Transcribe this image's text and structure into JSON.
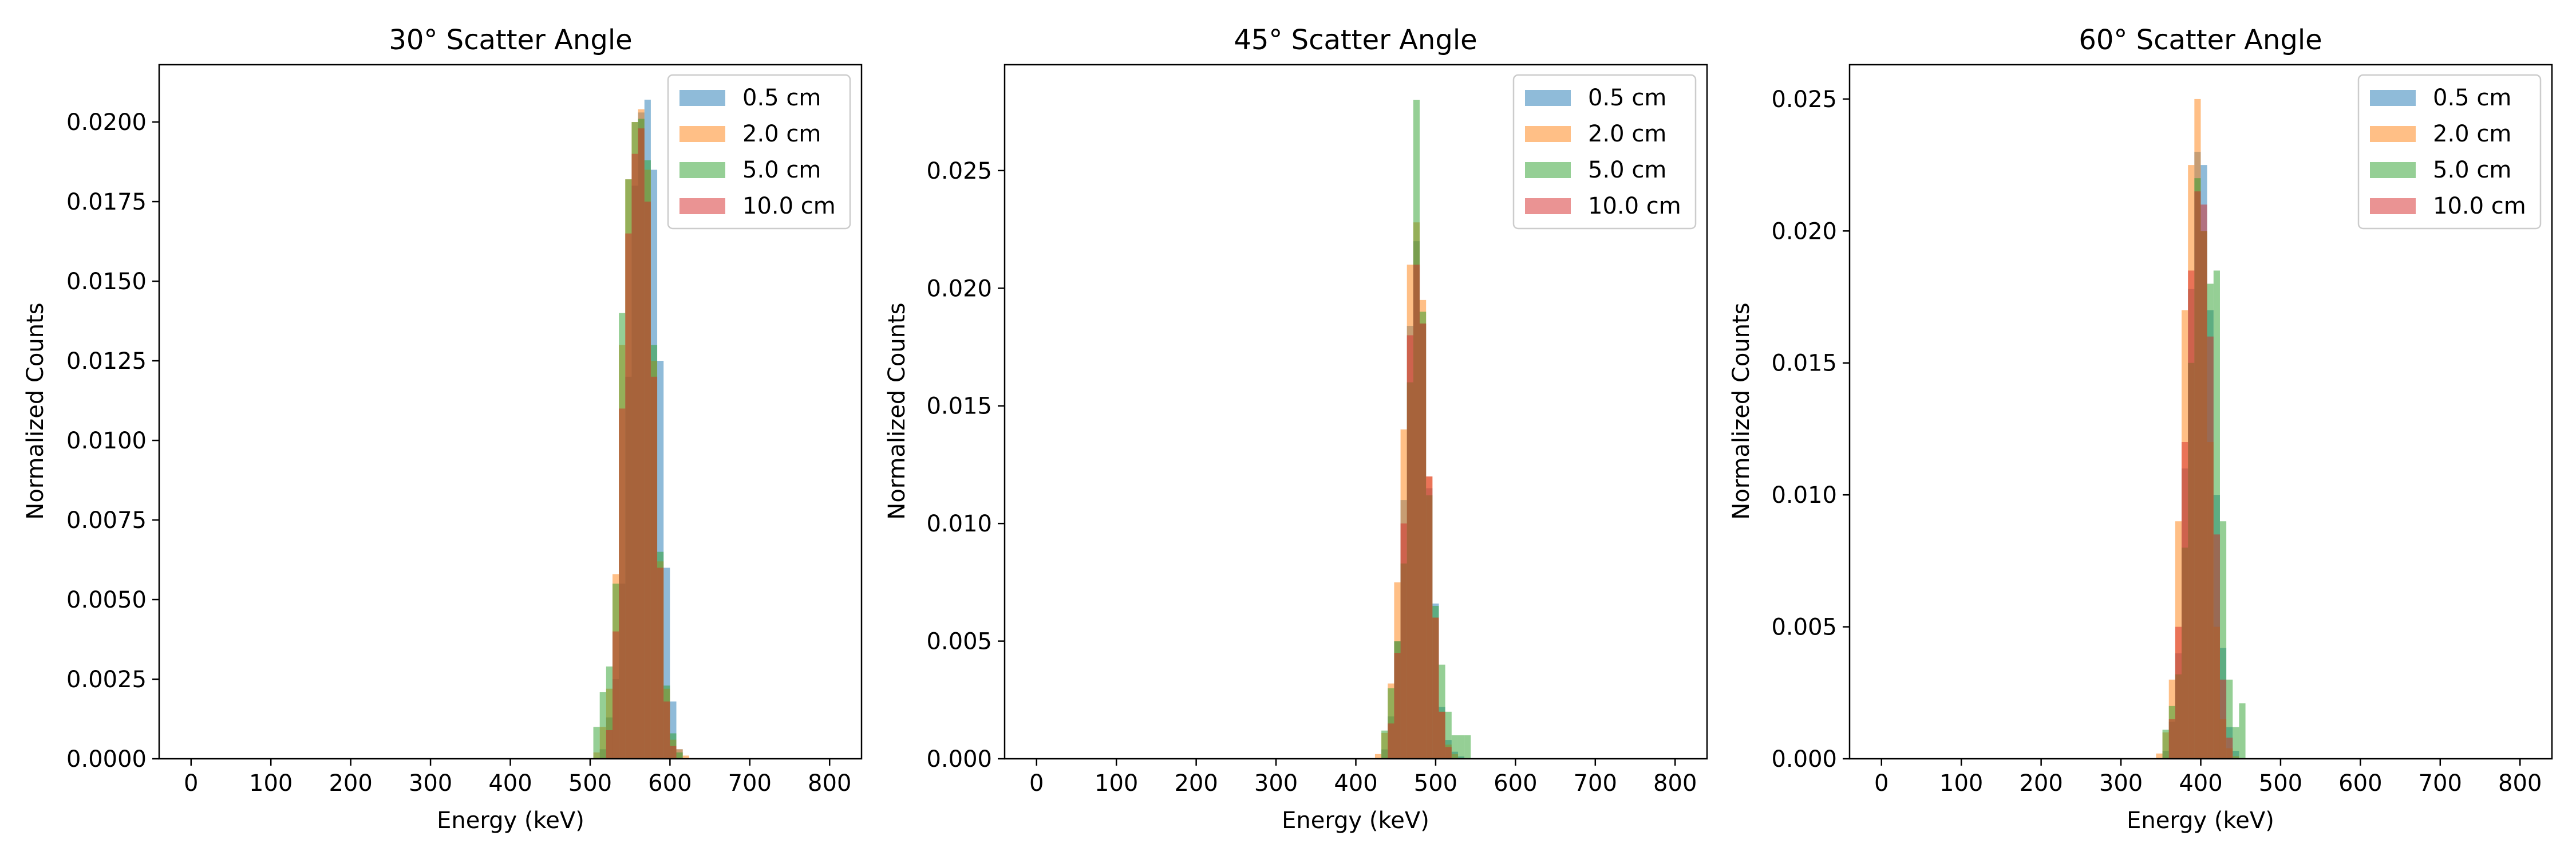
{
  "charts": [
    {
      "type": "bar",
      "title": "30° Scatter Angle",
      "xlabel": "Energy (keV)",
      "ylabel": "Normalized Counts",
      "xlim": [
        -40,
        840
      ],
      "ylim": [
        0,
        0.0218
      ],
      "xticks": [
        0,
        100,
        200,
        300,
        400,
        500,
        600,
        700,
        800
      ],
      "yticks": [
        "0.0000",
        "0.0025",
        "0.0050",
        "0.0075",
        "0.0100",
        "0.0125",
        "0.0150",
        "0.0175",
        "0.0200"
      ],
      "yticks_values": [
        0,
        0.0025,
        0.005,
        0.0075,
        0.01,
        0.0125,
        0.015,
        0.0175,
        0.02
      ],
      "legend_position": "top-right"
    },
    {
      "type": "bar",
      "title": "45° Scatter Angle",
      "xlabel": "Energy (keV)",
      "ylabel": "Normalized Counts",
      "xlim": [
        -40,
        840
      ],
      "ylim": [
        0,
        0.0295
      ],
      "xticks": [
        0,
        100,
        200,
        300,
        400,
        500,
        600,
        700,
        800
      ],
      "yticks": [
        "0.000",
        "0.005",
        "0.010",
        "0.015",
        "0.020",
        "0.025"
      ],
      "yticks_values": [
        0,
        0.005,
        0.01,
        0.015,
        0.02,
        0.025
      ],
      "legend_position": "top-right"
    },
    {
      "type": "bar",
      "title": "60° Scatter Angle",
      "xlabel": "Energy (keV)",
      "ylabel": "Normalized Counts",
      "xlim": [
        -40,
        840
      ],
      "ylim": [
        0,
        0.0263
      ],
      "xticks": [
        0,
        100,
        200,
        300,
        400,
        500,
        600,
        700,
        800
      ],
      "yticks": [
        "0.000",
        "0.005",
        "0.010",
        "0.015",
        "0.020",
        "0.025"
      ],
      "yticks_values": [
        0,
        0.005,
        0.01,
        0.015,
        0.02,
        0.025
      ],
      "legend_position": "top-right"
    }
  ],
  "legend": [
    {
      "name": "0.5 cm",
      "color": "#1f77b4"
    },
    {
      "name": "2.0 cm",
      "color": "#ff7f0e"
    },
    {
      "name": "5.0 cm",
      "color": "#2ca02c"
    },
    {
      "name": "10.0 cm",
      "color": "#d62728"
    }
  ],
  "chart_data": [
    {
      "type": "bar",
      "title": "30° Scatter Angle",
      "xlabel": "Energy (keV)",
      "ylabel": "Normalized Counts",
      "bin_width_keV": 8,
      "series": [
        {
          "name": "0.5 cm",
          "x": [
            512,
            520,
            528,
            536,
            544,
            552,
            560,
            568,
            576,
            584,
            592,
            600,
            608
          ],
          "values": [
            0.0003,
            0.0013,
            0.0025,
            0.0055,
            0.012,
            0.018,
            0.0203,
            0.0207,
            0.0185,
            0.0125,
            0.006,
            0.0018,
            0.0003
          ]
        },
        {
          "name": "2.0 cm",
          "x": [
            504,
            512,
            520,
            528,
            536,
            544,
            552,
            560,
            568,
            576,
            584,
            592,
            600,
            608,
            616
          ],
          "values": [
            0.0002,
            0.001,
            0.0022,
            0.0058,
            0.013,
            0.0182,
            0.02,
            0.0204,
            0.0185,
            0.0125,
            0.0062,
            0.0022,
            0.0006,
            0.0003,
            0.0001
          ]
        },
        {
          "name": "5.0 cm",
          "x": [
            504,
            512,
            520,
            528,
            536,
            544,
            552,
            560,
            568,
            576,
            584,
            592,
            600,
            608
          ],
          "values": [
            0.001,
            0.0021,
            0.0029,
            0.0055,
            0.014,
            0.0182,
            0.02,
            0.0201,
            0.0188,
            0.013,
            0.0065,
            0.0023,
            0.0008,
            0.0002
          ]
        },
        {
          "name": "10.0 cm",
          "x": [
            520,
            528,
            536,
            544,
            552,
            560,
            568,
            576,
            584,
            592,
            600
          ],
          "values": [
            0.0009,
            0.004,
            0.011,
            0.0165,
            0.019,
            0.0198,
            0.0175,
            0.012,
            0.006,
            0.0018,
            0.0004
          ]
        }
      ]
    },
    {
      "type": "bar",
      "title": "45° Scatter Angle",
      "xlabel": "Energy (keV)",
      "ylabel": "Normalized Counts",
      "bin_width_keV": 8,
      "series": [
        {
          "name": "0.5 cm",
          "x": [
            432,
            440,
            448,
            456,
            464,
            472,
            480,
            488,
            496,
            504,
            512,
            520,
            528
          ],
          "values": [
            0.0004,
            0.0018,
            0.005,
            0.011,
            0.0184,
            0.022,
            0.0185,
            0.0115,
            0.0066,
            0.0022,
            0.0008,
            0.0003,
            0.0001
          ]
        },
        {
          "name": "2.0 cm",
          "x": [
            424,
            432,
            440,
            448,
            456,
            464,
            472,
            480,
            488,
            496,
            504,
            512,
            520
          ],
          "values": [
            0.0002,
            0.0011,
            0.0032,
            0.0075,
            0.014,
            0.021,
            0.0228,
            0.0195,
            0.012,
            0.006,
            0.002,
            0.0006,
            0.0002
          ]
        },
        {
          "name": "5.0 cm",
          "x": [
            432,
            440,
            448,
            456,
            464,
            472,
            480,
            488,
            496,
            504,
            512,
            520,
            528,
            536
          ],
          "values": [
            0.0012,
            0.003,
            0.005,
            0.0083,
            0.016,
            0.028,
            0.019,
            0.0112,
            0.0065,
            0.004,
            0.002,
            0.001,
            0.001,
            0.001
          ]
        },
        {
          "name": "10.0 cm",
          "x": [
            440,
            448,
            456,
            464,
            472,
            480,
            488,
            496,
            504,
            512
          ],
          "values": [
            0.0015,
            0.0045,
            0.01,
            0.018,
            0.021,
            0.0185,
            0.012,
            0.006,
            0.002,
            0.0005
          ]
        }
      ]
    },
    {
      "type": "bar",
      "title": "60° Scatter Angle",
      "xlabel": "Energy (keV)",
      "ylabel": "Normalized Counts",
      "bin_width_keV": 8,
      "series": [
        {
          "name": "0.5 cm",
          "x": [
            352,
            360,
            368,
            376,
            384,
            392,
            400,
            408,
            416,
            424,
            432,
            440
          ],
          "values": [
            0.0003,
            0.0014,
            0.004,
            0.011,
            0.0178,
            0.023,
            0.0225,
            0.017,
            0.01,
            0.0042,
            0.0012,
            0.0003
          ]
        },
        {
          "name": "2.0 cm",
          "x": [
            344,
            352,
            360,
            368,
            376,
            384,
            392,
            400,
            408,
            416,
            424,
            432,
            440
          ],
          "values": [
            0.0002,
            0.001,
            0.003,
            0.009,
            0.017,
            0.0225,
            0.025,
            0.02,
            0.012,
            0.005,
            0.0015,
            0.0004,
            0.0001
          ]
        },
        {
          "name": "5.0 cm",
          "x": [
            352,
            360,
            368,
            376,
            384,
            392,
            400,
            408,
            416,
            424,
            432,
            440,
            448
          ],
          "values": [
            0.0011,
            0.002,
            0.0032,
            0.008,
            0.015,
            0.022,
            0.02,
            0.018,
            0.0185,
            0.009,
            0.003,
            0.0012,
            0.0021
          ]
        },
        {
          "name": "10.0 cm",
          "x": [
            360,
            368,
            376,
            384,
            392,
            400,
            408,
            416,
            424,
            432
          ],
          "values": [
            0.0015,
            0.005,
            0.012,
            0.0185,
            0.0215,
            0.021,
            0.016,
            0.0085,
            0.003,
            0.0008
          ]
        }
      ]
    }
  ]
}
